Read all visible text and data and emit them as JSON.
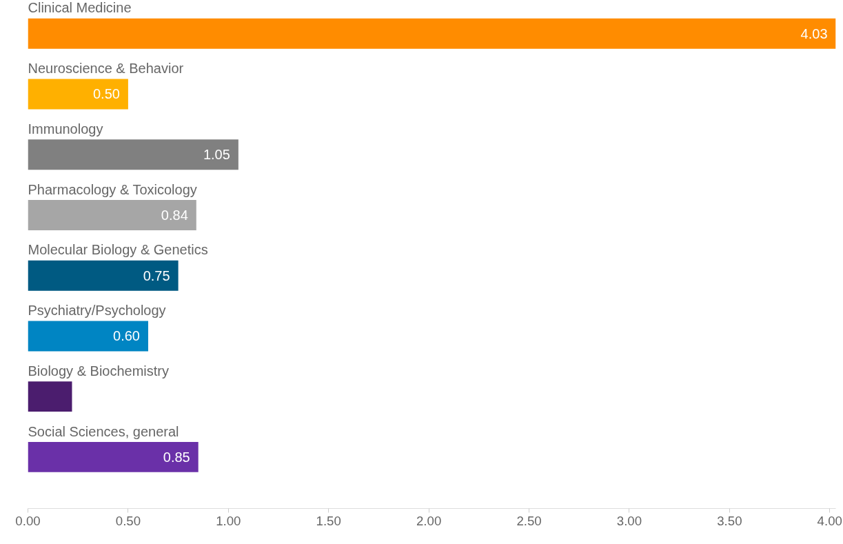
{
  "chart_data": {
    "type": "bar",
    "orientation": "horizontal",
    "categories": [
      "Clinical Medicine",
      "Neuroscience & Behavior",
      "Immunology",
      "Pharmacology & Toxicology",
      "Molecular Biology & Genetics",
      "Psychiatry/Psychology",
      "Biology & Biochemistry",
      "Social Sciences, general"
    ],
    "values": [
      4.03,
      0.5,
      1.05,
      0.84,
      0.75,
      0.6,
      0.22,
      0.85
    ],
    "value_labels": [
      "4.03",
      "0.50",
      "1.05",
      "0.84",
      "0.75",
      "0.60",
      null,
      "0.85"
    ],
    "colors": [
      "#ff8c00",
      "#ffb000",
      "#808080",
      "#a6a6a6",
      "#005a82",
      "#0085c3",
      "#4b1d6e",
      "#6a30a8"
    ],
    "xlim": [
      0,
      4.03
    ],
    "xticks": [
      {
        "value": 0,
        "label": "0.00"
      },
      {
        "value": 0.5,
        "label": "0.50"
      },
      {
        "value": 1,
        "label": "1.00"
      },
      {
        "value": 1.5,
        "label": "1.50"
      },
      {
        "value": 2,
        "label": "2.00"
      },
      {
        "value": 2.5,
        "label": "2.50"
      },
      {
        "value": 3,
        "label": "3.00"
      },
      {
        "value": 3.5,
        "label": "3.50"
      },
      {
        "value": 4,
        "label": "4.00"
      }
    ],
    "grid": false
  }
}
